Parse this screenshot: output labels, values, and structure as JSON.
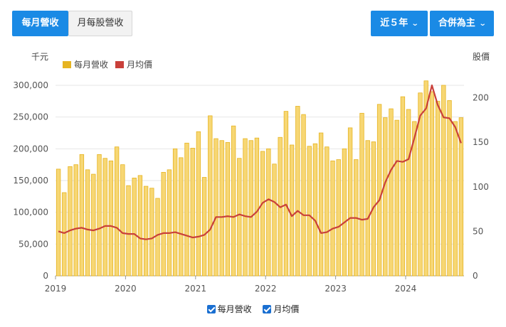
{
  "toolbar": {
    "monthly_revenue": "每月營收",
    "monthly_per_share_revenue": "月每股營收",
    "range": "近５年",
    "consolidation": "合併為主"
  },
  "legend_bottom": {
    "revenue": "每月營收",
    "price": "月均價"
  },
  "colors": {
    "bar_fill": "#f7d774",
    "bar_stroke": "#e6b422",
    "line": "#c9403a",
    "accent": "#1a8ae5"
  },
  "chart_data": {
    "type": "bar+line",
    "y_left_unit": "千元",
    "y_right_unit": "股價",
    "y_left_ticks": [
      "0",
      "50,000",
      "100,000",
      "150,000",
      "200,000",
      "250,000",
      "300,000"
    ],
    "y_right_ticks": [
      "0",
      "50",
      "100",
      "150",
      "200"
    ],
    "ylim_left": [
      0,
      300000
    ],
    "ylim_right": [
      0,
      214
    ],
    "x_start": "2019-01",
    "x_ticks": [
      "2019",
      "2020",
      "2021",
      "2022",
      "2023",
      "2024"
    ],
    "legend": [
      "每月營收",
      "月均價"
    ],
    "legend_placement": "top-left",
    "grid": true,
    "series": [
      {
        "name": "每月營收",
        "type": "bar",
        "values": [
          168000,
          131000,
          172000,
          175000,
          191000,
          167000,
          160000,
          191000,
          185000,
          181000,
          203000,
          175000,
          142000,
          154000,
          158000,
          141000,
          138000,
          122000,
          163000,
          167000,
          200000,
          186000,
          209000,
          201000,
          227000,
          155000,
          252000,
          216000,
          213000,
          210000,
          236000,
          185000,
          216000,
          213000,
          217000,
          196000,
          200000,
          176000,
          218000,
          259000,
          206000,
          267000,
          254000,
          204000,
          208000,
          225000,
          203000,
          181000,
          183000,
          200000,
          233000,
          183000,
          256000,
          213000,
          211000,
          270000,
          249000,
          263000,
          245000,
          282000,
          262000,
          243000,
          288000,
          307000,
          290000,
          275000,
          300000,
          276000,
          243000,
          249000
        ]
      },
      {
        "name": "月均價",
        "type": "line",
        "values": [
          50,
          48,
          51,
          53,
          54,
          52,
          51,
          53,
          56,
          56,
          54,
          48,
          47,
          47,
          42,
          41,
          42,
          46,
          48,
          48,
          49,
          47,
          45,
          43,
          44,
          46,
          52,
          66,
          66,
          67,
          66,
          69,
          67,
          66,
          72,
          82,
          86,
          83,
          77,
          80,
          67,
          73,
          68,
          68,
          62,
          48,
          49,
          53,
          55,
          60,
          65,
          65,
          63,
          64,
          77,
          85,
          105,
          119,
          129,
          128,
          131,
          155,
          180,
          188,
          214,
          192,
          178,
          177,
          167,
          149
        ]
      }
    ]
  }
}
